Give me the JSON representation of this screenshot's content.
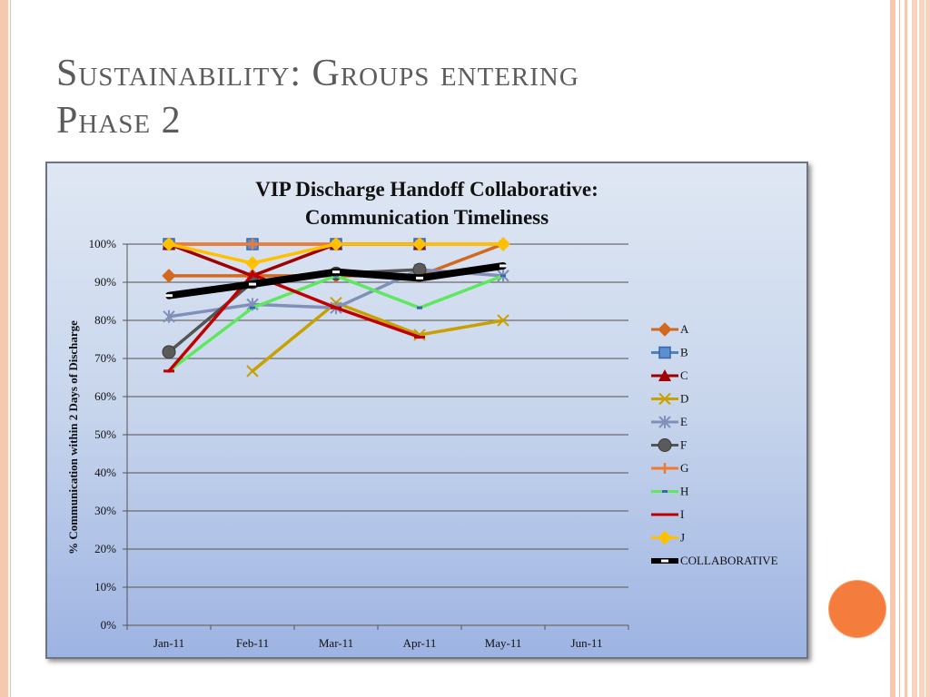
{
  "slide": {
    "title_line1": "Sustainability: Groups entering",
    "title_line2": "Phase 2"
  },
  "colors": {
    "accent": "#f47c3c",
    "stripe": "#f6c8ae"
  },
  "chart_data": {
    "type": "line",
    "title_line1": "VIP Discharge Handoff Collaborative:",
    "title_line2": "Communication Timeliness",
    "xlabel": "",
    "ylabel": "% Communication within 2 Days of Discharge",
    "categories": [
      "Jan-11",
      "Feb-11",
      "Mar-11",
      "Apr-11",
      "May-11",
      "Jun-11"
    ],
    "ylim": [
      0,
      100
    ],
    "yticks": [
      "0%",
      "10%",
      "20%",
      "30%",
      "40%",
      "50%",
      "60%",
      "70%",
      "80%",
      "90%",
      "100%"
    ],
    "grid": true,
    "legend_position": "right",
    "series": [
      {
        "name": "A",
        "color": "#d2691e",
        "marker": "diamond",
        "values": [
          91.7,
          91.7,
          91.7,
          91.7,
          100,
          null
        ]
      },
      {
        "name": "B",
        "color": "#4f81bd",
        "marker": "square",
        "values": [
          100,
          100,
          100,
          100,
          null,
          null
        ]
      },
      {
        "name": "C",
        "color": "#a00000",
        "marker": "triangle",
        "values": [
          100,
          91.7,
          100,
          100,
          null,
          null
        ]
      },
      {
        "name": "D",
        "color": "#c8a000",
        "marker": "x",
        "values": [
          null,
          66.7,
          84.6,
          76.2,
          80,
          null
        ]
      },
      {
        "name": "E",
        "color": "#8090b8",
        "marker": "star",
        "values": [
          81,
          84.2,
          83.3,
          93.3,
          91.7,
          null
        ]
      },
      {
        "name": "F",
        "color": "#555555",
        "marker": "circle",
        "values": [
          71.7,
          90,
          92.3,
          93.3,
          null,
          null
        ]
      },
      {
        "name": "G",
        "color": "#f07a30",
        "marker": "plus",
        "values": [
          100,
          100,
          100,
          100,
          100,
          null
        ]
      },
      {
        "name": "H",
        "color": "#5ee85e",
        "marker": "dash",
        "values": [
          66.7,
          83.3,
          91.7,
          83.3,
          91.7,
          null
        ]
      },
      {
        "name": "I",
        "color": "#c00000",
        "marker": "line",
        "values": [
          66.7,
          92,
          83.3,
          75.6,
          null,
          null
        ]
      },
      {
        "name": "J",
        "color": "#ffc000",
        "marker": "diamond",
        "values": [
          100,
          95,
          100,
          100,
          100,
          null
        ]
      },
      {
        "name": "COLLABORATIVE",
        "color": "#000000",
        "marker": "dash-white",
        "values": [
          86.5,
          89.5,
          92.7,
          91.1,
          94.3,
          null
        ]
      }
    ]
  }
}
